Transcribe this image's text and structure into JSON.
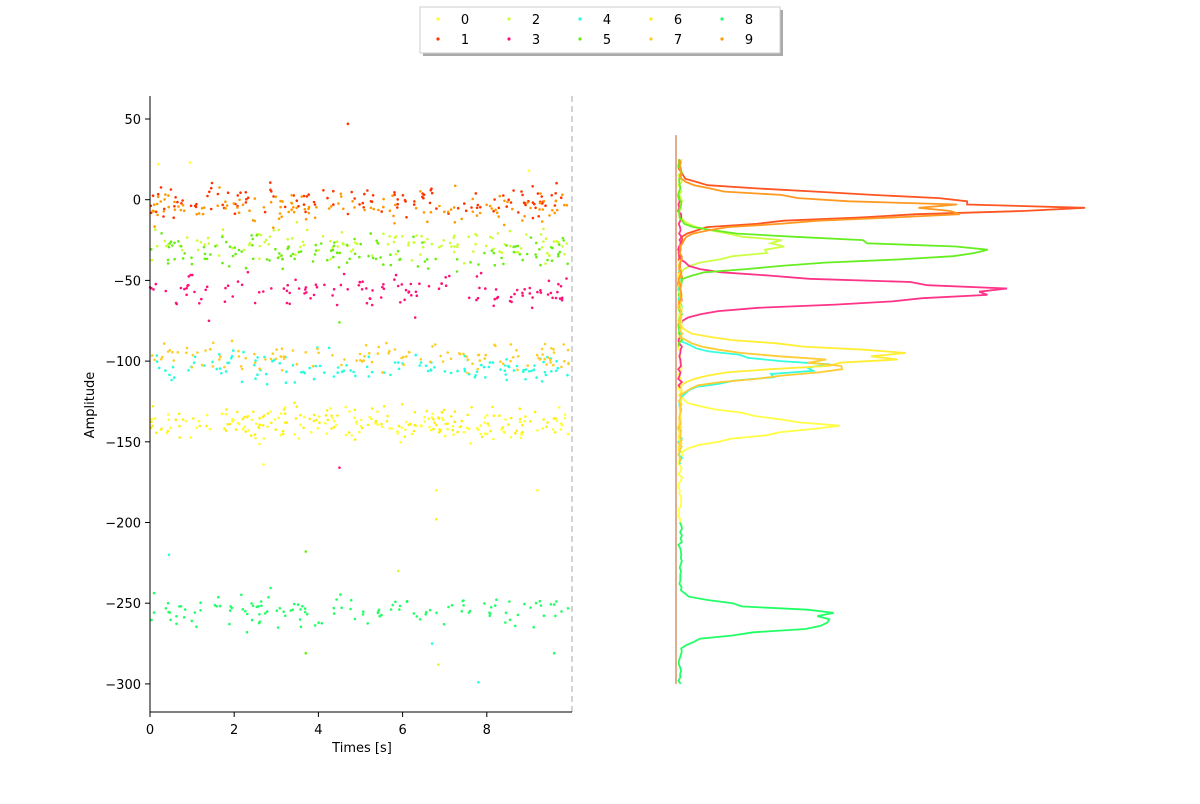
{
  "legend": {
    "entries": [
      {
        "label": "0",
        "color": "#ffff33"
      },
      {
        "label": "1",
        "color": "#ff3300"
      },
      {
        "label": "2",
        "color": "#ccff33"
      },
      {
        "label": "3",
        "color": "#ff1177"
      },
      {
        "label": "4",
        "color": "#22ffdd"
      },
      {
        "label": "5",
        "color": "#66ee11"
      },
      {
        "label": "6",
        "color": "#ffee11"
      },
      {
        "label": "7",
        "color": "#ffcc22"
      },
      {
        "label": "8",
        "color": "#22ff66"
      },
      {
        "label": "9",
        "color": "#ff9900"
      }
    ]
  },
  "chart_data": [
    {
      "type": "scatter",
      "xlabel": "Times [s]",
      "ylabel": "Amplitude",
      "xlim": [
        0,
        10
      ],
      "ylim": [
        -317,
        64
      ],
      "xticks": [
        0,
        2,
        4,
        6,
        8
      ],
      "yticks": [
        50,
        0,
        -50,
        -100,
        -150,
        -200,
        -250,
        -300
      ],
      "reference_line": {
        "x": 9.95,
        "style": "dashed",
        "color": "#aaaaaa"
      },
      "n_points_per_series": 130,
      "series": [
        {
          "name": "0",
          "color": "#ffff33",
          "center": -140,
          "spread": 5
        },
        {
          "name": "1",
          "color": "#ff3300",
          "center": 0,
          "spread": 5
        },
        {
          "name": "2",
          "color": "#ccff33",
          "center": -27,
          "spread": 5
        },
        {
          "name": "3",
          "color": "#ff1177",
          "center": -57,
          "spread": 5
        },
        {
          "name": "4",
          "color": "#22ffdd",
          "center": -104,
          "spread": 5
        },
        {
          "name": "5",
          "color": "#66ee11",
          "center": -33,
          "spread": 5
        },
        {
          "name": "6",
          "color": "#ffee11",
          "center": -137,
          "spread": 5
        },
        {
          "name": "7",
          "color": "#ffcc22",
          "center": -97,
          "spread": 5
        },
        {
          "name": "8",
          "color": "#22ff66",
          "center": -255,
          "spread": 5
        },
        {
          "name": "9",
          "color": "#ff9900",
          "center": -5,
          "spread": 5
        }
      ],
      "outliers": [
        {
          "x": 4.7,
          "y": 47,
          "series": "1"
        },
        {
          "x": 0.95,
          "y": 23,
          "series": "0"
        },
        {
          "x": 0.2,
          "y": 22,
          "series": "0"
        },
        {
          "x": 9.0,
          "y": 18,
          "series": "0"
        },
        {
          "x": 6.3,
          "y": -73,
          "series": "3"
        },
        {
          "x": 2.7,
          "y": -164,
          "series": "0"
        },
        {
          "x": 4.5,
          "y": -166,
          "series": "3"
        },
        {
          "x": 6.8,
          "y": -180,
          "series": "0"
        },
        {
          "x": 9.2,
          "y": -180,
          "series": "0"
        },
        {
          "x": 6.8,
          "y": -198,
          "series": "6"
        },
        {
          "x": 0.45,
          "y": -220,
          "series": "4"
        },
        {
          "x": 3.7,
          "y": -218,
          "series": "5"
        },
        {
          "x": 5.9,
          "y": -230,
          "series": "2"
        },
        {
          "x": 6.7,
          "y": -275,
          "series": "4"
        },
        {
          "x": 6.85,
          "y": -288,
          "series": "2"
        },
        {
          "x": 7.8,
          "y": -299,
          "series": "4"
        },
        {
          "x": 3.7,
          "y": -281,
          "series": "5"
        },
        {
          "x": 9.6,
          "y": -281,
          "series": "8"
        },
        {
          "x": 1.4,
          "y": -75,
          "series": "3"
        },
        {
          "x": 4.5,
          "y": -76,
          "series": "5"
        }
      ]
    },
    {
      "type": "line",
      "orientation": "horizontal-histogram",
      "ylim": [
        -317,
        64
      ],
      "xlim": [
        0,
        1
      ],
      "series": [
        {
          "name": "0",
          "color": "#ffff44",
          "peak_y": -140,
          "peak": 0.42
        },
        {
          "name": "1",
          "color": "#ff5522",
          "peak_y": -4,
          "peak": 1.0
        },
        {
          "name": "2",
          "color": "#ccff44",
          "peak_y": -28,
          "peak": 0.3
        },
        {
          "name": "3",
          "color": "#ff3388",
          "peak_y": -57,
          "peak": 0.95
        },
        {
          "name": "4",
          "color": "#33ffdd",
          "peak_y": -104,
          "peak": 0.38
        },
        {
          "name": "5",
          "color": "#66ee22",
          "peak_y": -32,
          "peak": 0.87
        },
        {
          "name": "6",
          "color": "#ffee33",
          "peak_y": -97,
          "peak": 0.6
        },
        {
          "name": "7",
          "color": "#ffcc33",
          "peak_y": -103,
          "peak": 0.45
        },
        {
          "name": "8",
          "color": "#22ff66",
          "peak_y": -260,
          "peak": 0.5
        },
        {
          "name": "9",
          "color": "#ff9922",
          "peak_y": -6,
          "peak": 0.8
        }
      ]
    }
  ]
}
